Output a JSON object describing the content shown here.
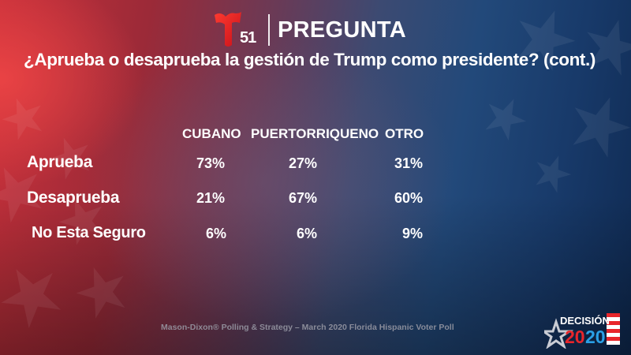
{
  "header": {
    "logo_number": "51",
    "logo_name": "telemundo-51-logo",
    "title": "PREGUNTA"
  },
  "question": "¿Aprueba o desaprueba la gestión de Trump como presidente? (cont.)",
  "table": {
    "columns": [
      "CUBANO",
      "PUERTORRIQUENO",
      "OTRO"
    ],
    "rows": [
      {
        "label": "Aprueba",
        "values": [
          "73%",
          "27%",
          "31%"
        ]
      },
      {
        "label": "Desaprueba",
        "values": [
          "21%",
          "67%",
          "60%"
        ]
      },
      {
        "label": "No Esta Seguro",
        "values": [
          "6%",
          "6%",
          "9%"
        ]
      }
    ]
  },
  "source": "Mason-Dixon® Polling & Strategy – March 2020 Florida Hispanic Voter Poll",
  "badge": {
    "line1": "DECISIÓN",
    "line2a": "20",
    "line2b": "20"
  },
  "colors": {
    "red": "#e8262b",
    "blue": "#2aa0e6",
    "white": "#ffffff"
  }
}
